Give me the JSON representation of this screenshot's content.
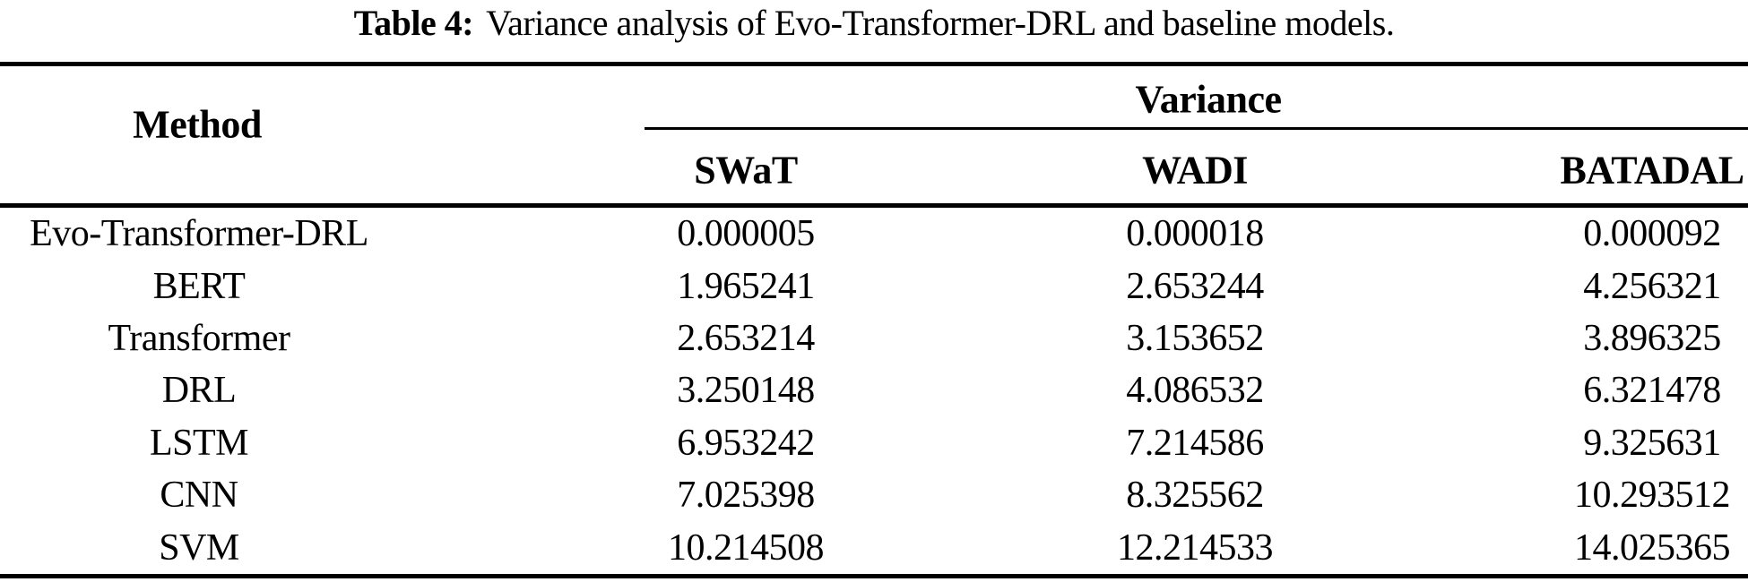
{
  "colors": {
    "background": "#ffffff",
    "text": "#000000",
    "rule": "#000000"
  },
  "caption": {
    "label": "Table 4:",
    "text": "Variance analysis of Evo-Transformer-DRL and baseline models."
  },
  "table": {
    "method_header": "Method",
    "group_header": "Variance",
    "subcols": [
      "SWaT",
      "WADI",
      "BATADAL"
    ],
    "rows": [
      {
        "method": "Evo-Transformer-DRL",
        "swat": "0.000005",
        "wadi": "0.000018",
        "batadal": "0.000092"
      },
      {
        "method": "BERT",
        "swat": "1.965241",
        "wadi": "2.653244",
        "batadal": "4.256321"
      },
      {
        "method": "Transformer",
        "swat": "2.653214",
        "wadi": "3.153652",
        "batadal": "3.896325"
      },
      {
        "method": "DRL",
        "swat": "3.250148",
        "wadi": "4.086532",
        "batadal": "6.321478"
      },
      {
        "method": "LSTM",
        "swat": "6.953242",
        "wadi": "7.214586",
        "batadal": "9.325631"
      },
      {
        "method": "CNN",
        "swat": "7.025398",
        "wadi": "8.325562",
        "batadal": "10.293512"
      },
      {
        "method": "SVM",
        "swat": "10.214508",
        "wadi": "12.214533",
        "batadal": "14.025365"
      }
    ]
  },
  "chart_data": {
    "type": "table",
    "title": "Table 4: Variance analysis of Evo-Transformer-DRL and baseline models.",
    "columns": [
      "Method",
      "SWaT",
      "WADI",
      "BATADAL"
    ],
    "group_header": "Variance",
    "categories": [
      "Evo-Transformer-DRL",
      "BERT",
      "Transformer",
      "DRL",
      "LSTM",
      "CNN",
      "SVM"
    ],
    "series": [
      {
        "name": "SWaT",
        "values": [
          5e-06,
          1.965241,
          2.653214,
          3.250148,
          6.953242,
          7.025398,
          10.214508
        ]
      },
      {
        "name": "WADI",
        "values": [
          1.8e-05,
          2.653244,
          3.153652,
          4.086532,
          7.214586,
          8.325562,
          12.214533
        ]
      },
      {
        "name": "BATADAL",
        "values": [
          9.2e-05,
          4.256321,
          3.896325,
          6.321478,
          9.325631,
          10.293512,
          14.025365
        ]
      }
    ]
  }
}
